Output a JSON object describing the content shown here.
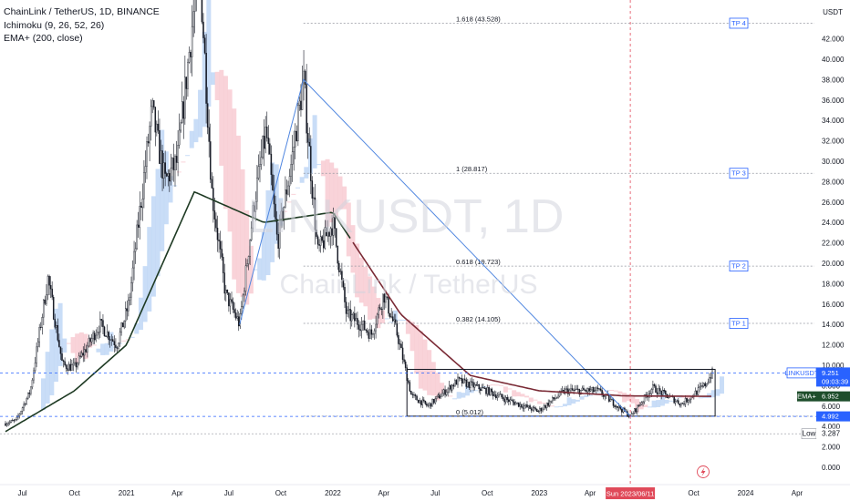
{
  "legend": {
    "symbol": "ChainLink / TetherUS, 1D, BINANCE",
    "indicator1": "Ichimoku (9, 26, 52, 26)",
    "indicator2": "EMA+ (200, close)"
  },
  "watermark": {
    "ticker": "LINKUSDT, 1D",
    "name": "ChainLink / TetherUS"
  },
  "price_axis": {
    "currency": "USDT",
    "ticks": [
      "42.000",
      "40.000",
      "38.000",
      "36.000",
      "34.000",
      "32.000",
      "30.000",
      "28.000",
      "26.000",
      "24.000",
      "22.000",
      "20.000",
      "18.000",
      "16.000",
      "14.000",
      "12.000",
      "10.000",
      "8.000",
      "6.000",
      "4.000",
      "2.000",
      "0.000"
    ]
  },
  "time_axis": {
    "ticks": [
      "Jul",
      "Oct",
      "2021",
      "Apr",
      "Jul",
      "Oct",
      "2022",
      "Apr",
      "Jul",
      "Oct",
      "2023",
      "Apr",
      "Jul",
      "Oct",
      "2024",
      "Apr"
    ],
    "crosshair_label": "Sun 2023/06/11"
  },
  "fib_levels": [
    {
      "label": "1.618 (43.528)",
      "price": 43.528
    },
    {
      "label": "1 (28.817)",
      "price": 28.817
    },
    {
      "label": "0.618 (19.723)",
      "price": 19.723
    },
    {
      "label": "0.382 (14.105)",
      "price": 14.105
    },
    {
      "label": "0 (5.012)",
      "price": 5.012
    }
  ],
  "targets": [
    {
      "label": "TP 4",
      "price": 43.528
    },
    {
      "label": "TP 3",
      "price": 28.817
    },
    {
      "label": "TP 2",
      "price": 19.723
    },
    {
      "label": "TP 1",
      "price": 14.105
    }
  ],
  "price_tags": {
    "symbol_label": "LINKUSDT",
    "last_price": "9.251",
    "countdown": "09:03:39",
    "ema_label": "EMA+",
    "ema_value": "6.952",
    "support": "4.992",
    "low_label": "Low",
    "low_value": "3.287"
  },
  "colors": {
    "candle": "#131722",
    "ema": "#1e3a23",
    "ema_late": "#7a2a35",
    "cloud_bull": "#bcd5f5",
    "cloud_bear": "#f7c8d0",
    "trend_line": "#4f86e0",
    "dashed_line": "#2962ff",
    "crosshair": "#e04a5a",
    "tag_blue": "#2962ff",
    "tag_green": "#1e4d2b"
  },
  "chart_data": {
    "type": "candlestick",
    "timeframe": "1D",
    "x_range": [
      "2020-06",
      "2024-05"
    ],
    "ylim": [
      0,
      44
    ],
    "close_path": [
      {
        "date": "2020-06-01",
        "price": 4.3
      },
      {
        "date": "2020-06-20",
        "price": 4.6
      },
      {
        "date": "2020-07-15",
        "price": 7.5
      },
      {
        "date": "2020-08-15",
        "price": 18.5
      },
      {
        "date": "2020-09-10",
        "price": 10.0
      },
      {
        "date": "2020-10-01",
        "price": 9.8
      },
      {
        "date": "2020-10-20",
        "price": 11.5
      },
      {
        "date": "2020-11-15",
        "price": 14.0
      },
      {
        "date": "2020-12-15",
        "price": 12.0
      },
      {
        "date": "2021-01-05",
        "price": 16.0
      },
      {
        "date": "2021-02-15",
        "price": 35.0
      },
      {
        "date": "2021-03-10",
        "price": 28.0
      },
      {
        "date": "2021-04-01",
        "price": 30.0
      },
      {
        "date": "2021-05-10",
        "price": 50.0
      },
      {
        "date": "2021-06-01",
        "price": 27.0
      },
      {
        "date": "2021-06-25",
        "price": 17.0
      },
      {
        "date": "2021-07-20",
        "price": 14.0
      },
      {
        "date": "2021-08-15",
        "price": 26.0
      },
      {
        "date": "2021-09-05",
        "price": 33.0
      },
      {
        "date": "2021-09-25",
        "price": 22.0
      },
      {
        "date": "2021-10-20",
        "price": 30.0
      },
      {
        "date": "2021-11-10",
        "price": 38.0
      },
      {
        "date": "2021-12-05",
        "price": 21.0
      },
      {
        "date": "2022-01-01",
        "price": 24.0
      },
      {
        "date": "2022-01-25",
        "price": 15.0
      },
      {
        "date": "2022-02-20",
        "price": 14.0
      },
      {
        "date": "2022-03-10",
        "price": 13.0
      },
      {
        "date": "2022-04-01",
        "price": 17.0
      },
      {
        "date": "2022-04-25",
        "price": 13.0
      },
      {
        "date": "2022-05-20",
        "price": 7.0
      },
      {
        "date": "2022-06-18",
        "price": 6.0
      },
      {
        "date": "2022-08-10",
        "price": 8.5
      },
      {
        "date": "2022-10-01",
        "price": 7.5
      },
      {
        "date": "2022-11-10",
        "price": 6.5
      },
      {
        "date": "2022-12-30",
        "price": 5.5
      },
      {
        "date": "2023-02-15",
        "price": 7.5
      },
      {
        "date": "2023-04-15",
        "price": 7.5
      },
      {
        "date": "2023-06-11",
        "price": 5.0
      },
      {
        "date": "2023-07-20",
        "price": 7.8
      },
      {
        "date": "2023-09-10",
        "price": 6.2
      },
      {
        "date": "2023-10-20",
        "price": 8.0
      },
      {
        "date": "2023-11-03",
        "price": 9.251
      }
    ],
    "ema200": [
      {
        "date": "2020-06-01",
        "price": 3.5
      },
      {
        "date": "2020-10-01",
        "price": 7.5
      },
      {
        "date": "2021-01-01",
        "price": 12.0
      },
      {
        "date": "2021-05-01",
        "price": 27.0
      },
      {
        "date": "2021-09-01",
        "price": 24.0
      },
      {
        "date": "2022-01-01",
        "price": 25.0
      },
      {
        "date": "2022-05-01",
        "price": 15.0
      },
      {
        "date": "2022-09-01",
        "price": 9.0
      },
      {
        "date": "2023-01-01",
        "price": 7.5
      },
      {
        "date": "2023-06-01",
        "price": 7.0
      },
      {
        "date": "2023-11-03",
        "price": 6.952
      }
    ],
    "range_box": {
      "low": 5.012,
      "high": 9.6
    },
    "trend_line": [
      {
        "date": "2021-07-20",
        "price": 14.0
      },
      {
        "date": "2021-11-10",
        "price": 38.0
      },
      {
        "date": "2023-06-11",
        "price": 5.0
      }
    ]
  }
}
